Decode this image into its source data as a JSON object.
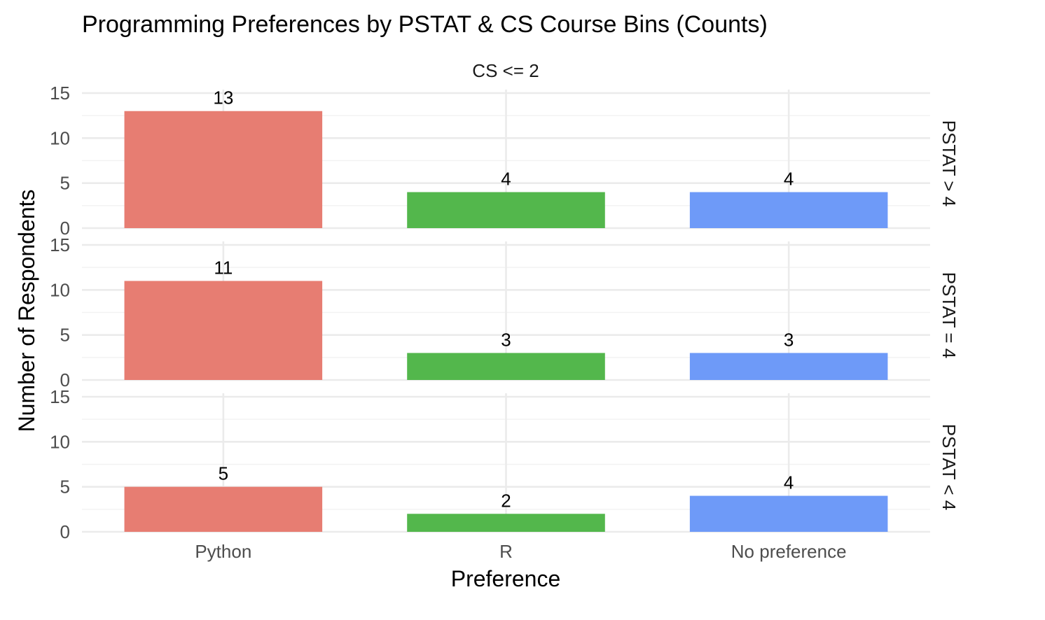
{
  "chart_data": {
    "type": "bar",
    "title": "Programming Preferences by PSTAT & CS Course Bins (Counts)",
    "xlabel": "Preference",
    "ylabel": "Number of Respondents",
    "categories": [
      "Python",
      "R",
      "No preference"
    ],
    "colors": [
      "#E77D72",
      "#53B74C",
      "#6E9AF8"
    ],
    "column_facets": [
      "CS <= 2"
    ],
    "ylim": [
      0,
      15
    ],
    "yticks": [
      0,
      5,
      10,
      15
    ],
    "grid": true,
    "legend": "none",
    "panels": [
      {
        "row_label": "PSTAT > 4",
        "values": [
          13,
          4,
          4
        ]
      },
      {
        "row_label": "PSTAT = 4",
        "values": [
          11,
          3,
          3
        ]
      },
      {
        "row_label": "PSTAT < 4",
        "values": [
          5,
          2,
          4
        ]
      }
    ]
  }
}
